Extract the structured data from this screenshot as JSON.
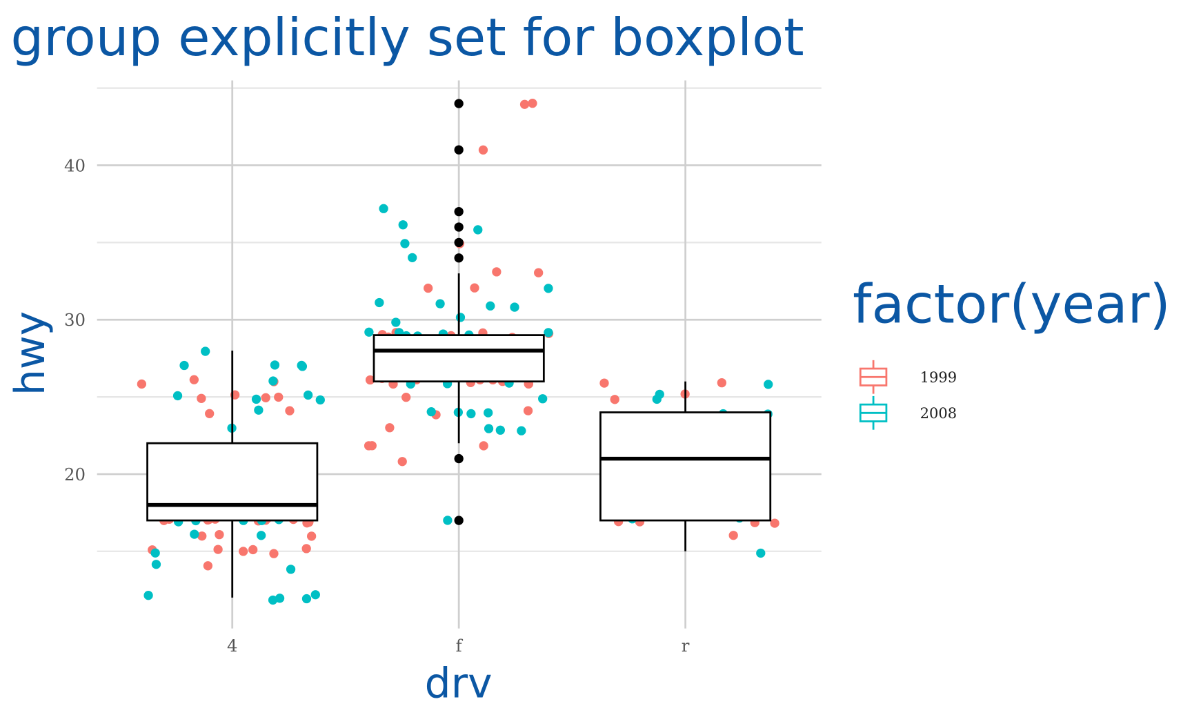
{
  "chart_data": {
    "type": "boxplot",
    "title": "group explicitly set for boxplot",
    "x_label": "drv",
    "y_label": "hwy",
    "legend_title": "factor(year)",
    "categories": [
      "4",
      "f",
      "r"
    ],
    "ylim": [
      10,
      45.5
    ],
    "yticks": [
      20,
      30,
      40
    ],
    "minor_yticks": [
      15,
      25,
      35,
      45
    ],
    "grid": true,
    "boxes": [
      {
        "whisker_low": 12,
        "q1": 17,
        "median": 18,
        "q3": 22,
        "whisker_high": 28,
        "outliers": []
      },
      {
        "whisker_low": 22,
        "q1": 26,
        "median": 28,
        "q3": 29,
        "whisker_high": 33,
        "outliers": [
          44,
          41,
          37,
          36,
          35,
          34,
          21,
          17
        ]
      },
      {
        "whisker_low": 15,
        "q1": 17,
        "median": 21,
        "q3": 24,
        "whisker_high": 26,
        "outliers": []
      }
    ],
    "series": [
      {
        "name": "1999",
        "color": "#f8766d",
        "values": [
          [
            26,
            26,
            26,
            25,
            25,
            25,
            24,
            24,
            17,
            17,
            17,
            17,
            17,
            17,
            17,
            17,
            17,
            17,
            16,
            16,
            15,
            15,
            15,
            15,
            15,
            14,
            20,
            25,
            17,
            17,
            16,
            15
          ],
          [
            44,
            44,
            41,
            35,
            33,
            33,
            32,
            32,
            29,
            29,
            29,
            29,
            29,
            29,
            29,
            26,
            26,
            26,
            26,
            26,
            26,
            26,
            26,
            26,
            24,
            24,
            23,
            22,
            22,
            22,
            21,
            26,
            26,
            25
          ],
          [
            26,
            26,
            25,
            25,
            17,
            17,
            17,
            17,
            16,
            17
          ]
        ]
      },
      {
        "name": "2008",
        "color": "#00bfc4",
        "values": [
          [
            27,
            27,
            27,
            28,
            27,
            26,
            25,
            25,
            25,
            25,
            24,
            23,
            20,
            20,
            19,
            17,
            17,
            17,
            17,
            17,
            17,
            16,
            16,
            15,
            14,
            12,
            12,
            12,
            12,
            12,
            14
          ],
          [
            37,
            36,
            36,
            35,
            34,
            32,
            31,
            31,
            31,
            31,
            30,
            30,
            29,
            29,
            29,
            29,
            29,
            29,
            29,
            28,
            26,
            26,
            26,
            25,
            24,
            24,
            24,
            24,
            23,
            23,
            23,
            17
          ],
          [
            26,
            25,
            25,
            24,
            24,
            17,
            17,
            15
          ]
        ]
      }
    ]
  }
}
